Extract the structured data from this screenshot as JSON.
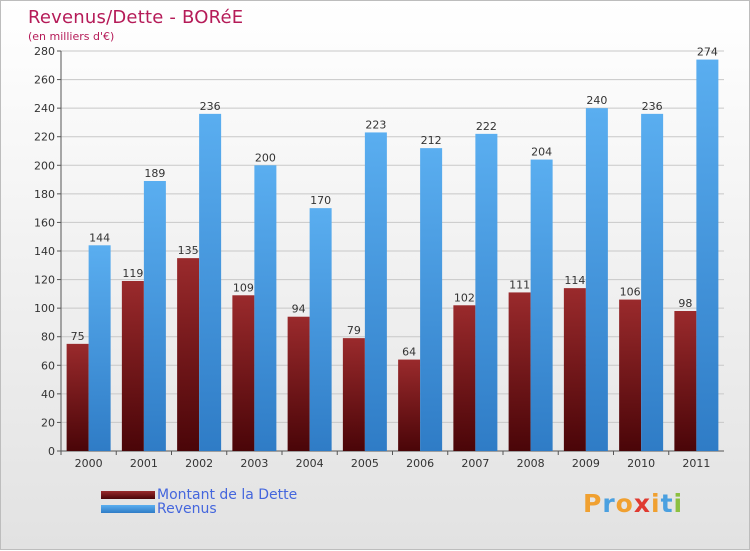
{
  "chart_data": {
    "type": "bar",
    "title": "Revenus/Dette - BORéE",
    "subtitle": "(en milliers d'€)",
    "categories": [
      "2000",
      "2001",
      "2002",
      "2003",
      "2004",
      "2005",
      "2006",
      "2007",
      "2008",
      "2009",
      "2010",
      "2011"
    ],
    "series": [
      {
        "name": "Montant de la Dette",
        "values": [
          75,
          119,
          135,
          109,
          94,
          79,
          64,
          102,
          111,
          114,
          106,
          98
        ],
        "color": "#7a1a1c"
      },
      {
        "name": "Revenus",
        "values": [
          144,
          189,
          236,
          200,
          170,
          223,
          212,
          222,
          204,
          240,
          236,
          274
        ],
        "color": "#4a9de0"
      }
    ],
    "ylim": [
      0,
      280
    ],
    "yticks": [
      0,
      20,
      40,
      60,
      80,
      100,
      120,
      140,
      160,
      180,
      200,
      220,
      240,
      260,
      280
    ],
    "grid": true,
    "legend": "bottom-left"
  },
  "logo": {
    "text": "Proxiti",
    "letters": [
      "P",
      "r",
      "o",
      "x",
      "i",
      "t",
      "i"
    ],
    "colors": [
      "#f0a030",
      "#4aa0e0",
      "#f0a030",
      "#e03a30",
      "#f0a030",
      "#4aa0e0",
      "#8cc040"
    ]
  }
}
